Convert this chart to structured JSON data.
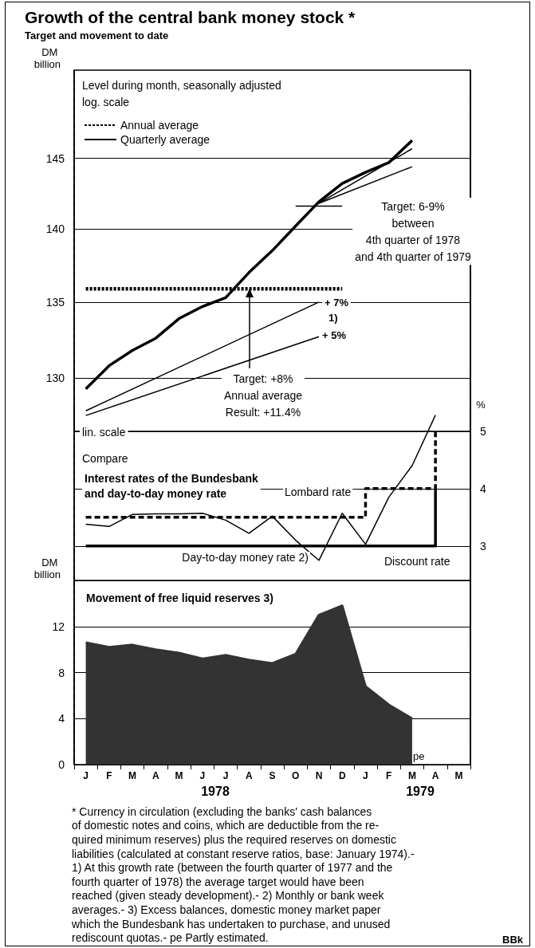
{
  "chart_data": [
    {
      "type": "line",
      "title": "Growth of the central bank money stock *",
      "subtitle": "Target and movement to date",
      "ylabel": "DM billion",
      "log": "y",
      "categories": [
        "J",
        "F",
        "M",
        "A",
        "M",
        "J",
        "J",
        "A",
        "S",
        "O",
        "N",
        "D",
        "J",
        "F",
        "M",
        "A",
        "M"
      ],
      "ylim": [
        126.6,
        151.5
      ],
      "yticks": [
        130,
        135,
        140,
        145
      ],
      "tick_labels": "y",
      "grid": "y",
      "legend": "top left",
      "marker": "none",
      "line_style": "solid",
      "series": [
        {
          "color": "#000000",
          "values": [
            129.3,
            130.8,
            131.8,
            132.6,
            133.9,
            134.7,
            135.3,
            137.0,
            138.5,
            140.2,
            141.9,
            143.2,
            144.0,
            144.7,
            146.3,
            null,
            null
          ]
        },
        {
          "name": "Annual average",
          "color": "#000000",
          "line_style": "dotted",
          "values": [
            135.9,
            135.9,
            135.9,
            135.9,
            135.9,
            135.9,
            135.9,
            135.9,
            135.9,
            135.9,
            135.9,
            135.9,
            null,
            null,
            null,
            null,
            null
          ]
        },
        {
          "name": "Quarterly average",
          "color": "#000000",
          "values": [
            null,
            null,
            null,
            null,
            null,
            null,
            null,
            null,
            null,
            141.6,
            141.6,
            141.6,
            null,
            null,
            null,
            null,
            null
          ]
        },
        {
          "color": "#000000",
          "values": [
            127.9,
            null,
            null,
            null,
            null,
            null,
            null,
            null,
            null,
            null,
            135.0,
            null,
            null,
            null,
            null,
            null,
            null
          ]
        },
        {
          "color": "#000000",
          "values": [
            127.6,
            null,
            null,
            null,
            null,
            null,
            null,
            null,
            null,
            null,
            132.7,
            null,
            null,
            null,
            null,
            null,
            null
          ]
        },
        {
          "color": "#000000",
          "values": [
            null,
            null,
            null,
            null,
            null,
            null,
            null,
            null,
            null,
            null,
            141.8,
            null,
            null,
            null,
            145.7,
            null,
            null
          ]
        },
        {
          "color": "#000000",
          "values": [
            null,
            null,
            null,
            null,
            null,
            null,
            null,
            null,
            null,
            null,
            141.8,
            null,
            null,
            null,
            144.4,
            null,
            null
          ]
        }
      ],
      "annotations": [
        "Level during month, seasonally adjusted\nlog. scale",
        "Target: 6-9%\nbetween\n4th quarter of 1978\nand 4th quarter of 1979",
        "+ 7%",
        "1)",
        "+ 5%",
        "Target: +8%\nAnnual average\nResult: +11.4%"
      ]
    },
    {
      "type": "line",
      "ylabel": "%",
      "categories": [
        "J",
        "F",
        "M",
        "A",
        "M",
        "J",
        "J",
        "A",
        "S",
        "O",
        "N",
        "D",
        "J",
        "F",
        "M",
        "A",
        "M"
      ],
      "ylim": [
        2.4,
        5.4
      ],
      "yticks": [
        3,
        4,
        5
      ],
      "tick_labels": "y",
      "grid": "y",
      "legend": false,
      "marker": "none",
      "series": [
        {
          "name": "Day-to-day money rate 2)",
          "color": "#000000",
          "line_style": "solid",
          "values": [
            3.38,
            3.34,
            3.55,
            3.56,
            3.56,
            3.57,
            3.45,
            3.22,
            3.52,
            3.1,
            2.75,
            3.57,
            3.03,
            3.85,
            4.4,
            5.28,
            null
          ]
        },
        {
          "name": "Lombard rate",
          "type": "step",
          "color": "#000000",
          "line_style": "dashed",
          "values": [
            3.5,
            3.5,
            3.5,
            3.5,
            3.5,
            3.5,
            3.5,
            3.5,
            3.5,
            3.5,
            3.5,
            3.5,
            4,
            4,
            4,
            5,
            null
          ]
        },
        {
          "name": "Discount rate",
          "type": "step",
          "color": "#000000",
          "line_style": "solid",
          "values": [
            3,
            3,
            3,
            3,
            3,
            3,
            3,
            3,
            3,
            3,
            3,
            3,
            3,
            3,
            3,
            4,
            null
          ]
        }
      ],
      "annotations": [
        "lin. scale",
        "Compare",
        "Interest rates of the Bundesbank\nand day-to-day money rate"
      ]
    },
    {
      "type": "area",
      "title": "Movement of free liquid reserves 3)",
      "ylabel": "DM billion",
      "categories": [
        "J",
        "F",
        "M",
        "A",
        "M",
        "J",
        "J",
        "A",
        "S",
        "O",
        "N",
        "D",
        "J",
        "F",
        "M",
        "A",
        "M"
      ],
      "ylim": [
        0,
        16
      ],
      "yticks": [
        0,
        4,
        8,
        12
      ],
      "grid": "y",
      "marker": "none",
      "color": "#333333",
      "values": [
        10.6,
        10.2,
        10.4,
        10.0,
        9.7,
        9.2,
        9.5,
        9.1,
        8.8,
        9.6,
        13.0,
        13.8,
        6.8,
        5.2,
        4.0,
        null,
        null
      ],
      "annotations": [
        "pe",
        "1978",
        "1979",
        "* Currency in circulation (excluding the banks' cash balances\nof domestic notes and coins, which are deductible from the re-\nquired minimum reserves) plus the required reserves on domestic\nliabilities (calculated at constant reserve ratios, base: January 1974).-\n1) At this growth rate (between the fourth quarter of 1977 and the\nfourth quarter of 1978) the average target would have been\nreached (given steady development).- 2) Monthly or bank week\naverages.- 3) Excess balances, domestic money market paper\nwhich the Bundesbank has undertaken to purchase, and unused\nrediscount quotas.- pe Partly estimated.",
        "BBk"
      ]
    }
  ]
}
